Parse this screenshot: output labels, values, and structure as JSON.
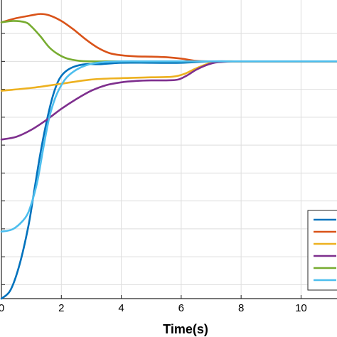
{
  "chart_data": {
    "type": "line",
    "title": "",
    "xlabel": "Time(s)",
    "ylabel": "",
    "xlim": [
      0,
      11.2
    ],
    "ylim": [
      0,
      10.7
    ],
    "x_ticks": [
      0,
      2,
      4,
      6,
      8,
      10
    ],
    "x_tick_labels": [
      "0",
      "2",
      "4",
      "6",
      "8",
      "10"
    ],
    "grid": true,
    "legend": {
      "position": "bottom-right",
      "entries_visible": 6,
      "labels_visible": false
    },
    "series": [
      {
        "color": "#0072BD",
        "x": [
          0,
          0.3,
          0.6,
          0.9,
          1.1,
          1.3,
          1.5,
          1.7,
          1.9,
          2.1,
          2.4,
          2.8,
          3.3,
          4.0,
          5.0,
          6.0,
          7.0,
          8.0,
          9.0,
          10.0,
          11.2
        ],
        "y": [
          0.0,
          0.3,
          1.2,
          2.6,
          3.9,
          5.2,
          6.3,
          7.2,
          7.8,
          8.1,
          8.3,
          8.4,
          8.4,
          8.45,
          8.45,
          8.45,
          8.5,
          8.5,
          8.5,
          8.5,
          8.5
        ]
      },
      {
        "color": "#D95319",
        "x": [
          0,
          0.5,
          1.0,
          1.3,
          1.6,
          2.0,
          2.4,
          2.8,
          3.2,
          3.6,
          4.0,
          4.5,
          5.0,
          5.5,
          6.0,
          6.5,
          7.0,
          7.5,
          8.0,
          9.0,
          10.0,
          11.2
        ],
        "y": [
          9.9,
          10.05,
          10.15,
          10.2,
          10.15,
          9.95,
          9.65,
          9.3,
          9.0,
          8.8,
          8.72,
          8.68,
          8.67,
          8.65,
          8.6,
          8.52,
          8.5,
          8.5,
          8.5,
          8.5,
          8.5,
          8.5
        ]
      },
      {
        "color": "#EDB120",
        "x": [
          0,
          1.0,
          2.0,
          3.0,
          4.0,
          5.0,
          5.7,
          6.1,
          6.5,
          7.0,
          7.5,
          8.0,
          9.0,
          10.0,
          11.2
        ],
        "y": [
          7.45,
          7.55,
          7.7,
          7.85,
          7.9,
          7.93,
          7.95,
          8.05,
          8.25,
          8.45,
          8.5,
          8.5,
          8.5,
          8.5,
          8.5
        ]
      },
      {
        "color": "#7E2F8E",
        "x": [
          0,
          0.5,
          1.0,
          1.5,
          2.0,
          2.5,
          3.0,
          3.5,
          4.0,
          4.5,
          5.0,
          5.5,
          5.9,
          6.2,
          6.5,
          6.8,
          7.1,
          7.4,
          7.7,
          8.0,
          8.5,
          9.0,
          10.0,
          11.2
        ],
        "y": [
          5.7,
          5.8,
          6.05,
          6.4,
          6.8,
          7.15,
          7.45,
          7.65,
          7.75,
          7.8,
          7.82,
          7.82,
          7.85,
          8.0,
          8.2,
          8.35,
          8.45,
          8.48,
          8.5,
          8.5,
          8.5,
          8.5,
          8.5,
          8.5
        ]
      },
      {
        "color": "#77AC30",
        "x": [
          0,
          0.4,
          0.8,
          1.0,
          1.3,
          1.6,
          1.9,
          2.2,
          2.6,
          3.0,
          3.5,
          4.0,
          5.0,
          6.0,
          7.0,
          8.0,
          9.0,
          10.0,
          11.2
        ],
        "y": [
          9.9,
          9.95,
          9.9,
          9.75,
          9.4,
          9.0,
          8.75,
          8.6,
          8.52,
          8.5,
          8.5,
          8.5,
          8.5,
          8.5,
          8.5,
          8.5,
          8.5,
          8.5,
          8.5
        ]
      },
      {
        "color": "#4DBEEE",
        "x": [
          0,
          0.4,
          0.8,
          1.0,
          1.2,
          1.4,
          1.6,
          1.8,
          2.0,
          2.2,
          2.5,
          2.8,
          3.2,
          4.0,
          5.0,
          6.0,
          7.0,
          8.0,
          9.0,
          10.0,
          11.2
        ],
        "y": [
          2.4,
          2.5,
          2.9,
          3.4,
          4.2,
          5.4,
          6.5,
          7.2,
          7.65,
          7.95,
          8.2,
          8.35,
          8.45,
          8.5,
          8.5,
          8.5,
          8.5,
          8.5,
          8.5,
          8.5,
          8.5
        ]
      }
    ]
  }
}
